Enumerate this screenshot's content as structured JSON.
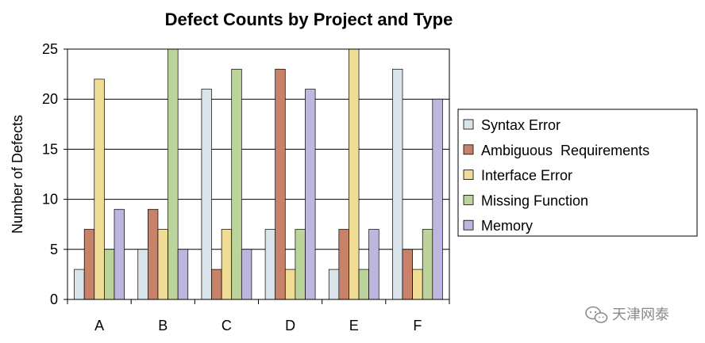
{
  "chart_data": {
    "type": "bar",
    "title": "Defect Counts by Project and Type",
    "xlabel": "",
    "ylabel": "Number  of Defects",
    "categories": [
      "A",
      "B",
      "C",
      "D",
      "E",
      "F"
    ],
    "ylim": [
      0,
      25
    ],
    "yticks": [
      0,
      5,
      10,
      15,
      20,
      25
    ],
    "grid": true,
    "legend_position": "right",
    "series": [
      {
        "name": "Syntax Error",
        "color": "#d9e4ea",
        "values": [
          3,
          5,
          21,
          7,
          3,
          23
        ]
      },
      {
        "name": "Ambiguous  Requirements",
        "color": "#c8826a",
        "values": [
          7,
          9,
          3,
          23,
          7,
          5
        ]
      },
      {
        "name": "Interface Error",
        "color": "#f0dc94",
        "values": [
          22,
          7,
          7,
          3,
          25,
          3
        ]
      },
      {
        "name": "Missing Function",
        "color": "#bcd49c",
        "values": [
          5,
          25,
          23,
          7,
          3,
          7
        ]
      },
      {
        "name": "Memory",
        "color": "#bfb6e0",
        "values": [
          9,
          5,
          5,
          21,
          7,
          20
        ]
      }
    ]
  },
  "watermark": {
    "text": "天津网泰",
    "icon": "wechat-icon"
  }
}
